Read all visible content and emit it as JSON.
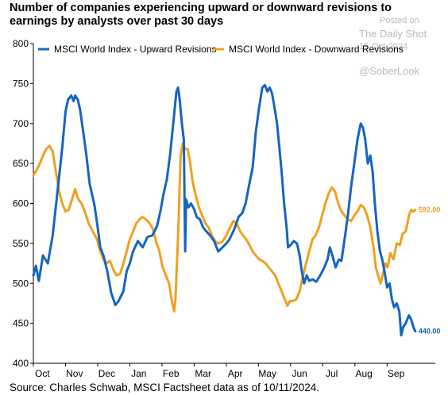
{
  "title": "Number of companies experiencing upward or downward revisions to earnings by analysts over past 30 days",
  "source": "Source: Charles Schwab, MSCI Factsheet data as of 10/11/2024.",
  "watermark": {
    "posted": "Posted on",
    "site": "The Daily Shot",
    "date": "15-Oct-2024",
    "handle": "@SoberLook"
  },
  "chart_data": {
    "type": "line",
    "title": "Number of companies experiencing upward or downward revisions to earnings by analysts over past 30 days",
    "xlabel": "",
    "ylabel": "",
    "ylim": [
      400,
      800
    ],
    "yticks": [
      400,
      450,
      500,
      550,
      600,
      650,
      700,
      750,
      800
    ],
    "xticks": [
      "Oct",
      "Nov",
      "Dec",
      "Jan",
      "Feb",
      "Mar",
      "Apr",
      "May",
      "Jun",
      "Jul",
      "Aug",
      "Sep"
    ],
    "xlim": [
      0,
      12.5
    ],
    "grid": false,
    "legend": "top-center",
    "series": [
      {
        "name": "MSCI World Index - Upward Revisions",
        "color": "#1565c0",
        "end_label": "440.00",
        "points": [
          [
            0.0,
            510
          ],
          [
            0.08,
            522
          ],
          [
            0.17,
            503
          ],
          [
            0.3,
            535
          ],
          [
            0.45,
            525
          ],
          [
            0.6,
            560
          ],
          [
            0.75,
            615
          ],
          [
            0.9,
            670
          ],
          [
            1.0,
            715
          ],
          [
            1.08,
            730
          ],
          [
            1.18,
            735
          ],
          [
            1.25,
            728
          ],
          [
            1.3,
            735
          ],
          [
            1.38,
            730
          ],
          [
            1.45,
            718
          ],
          [
            1.55,
            690
          ],
          [
            1.65,
            660
          ],
          [
            1.75,
            625
          ],
          [
            1.9,
            598
          ],
          [
            2.0,
            570
          ],
          [
            2.08,
            545
          ],
          [
            2.18,
            535
          ],
          [
            2.3,
            515
          ],
          [
            2.42,
            488
          ],
          [
            2.55,
            473
          ],
          [
            2.65,
            478
          ],
          [
            2.8,
            490
          ],
          [
            2.9,
            515
          ],
          [
            3.0,
            525
          ],
          [
            3.1,
            540
          ],
          [
            3.25,
            553
          ],
          [
            3.4,
            545
          ],
          [
            3.55,
            558
          ],
          [
            3.7,
            560
          ],
          [
            3.85,
            572
          ],
          [
            3.95,
            590
          ],
          [
            4.05,
            612
          ],
          [
            4.15,
            630
          ],
          [
            4.25,
            660
          ],
          [
            4.35,
            700
          ],
          [
            4.45,
            740
          ],
          [
            4.5,
            745
          ],
          [
            4.55,
            730
          ],
          [
            4.62,
            700
          ],
          [
            4.68,
            680
          ],
          [
            4.72,
            540
          ],
          [
            4.75,
            605
          ],
          [
            4.82,
            595
          ],
          [
            4.9,
            600
          ],
          [
            5.0,
            593
          ],
          [
            5.08,
            583
          ],
          [
            5.18,
            580
          ],
          [
            5.28,
            570
          ],
          [
            5.38,
            565
          ],
          [
            5.5,
            560
          ],
          [
            5.62,
            553
          ],
          [
            5.75,
            540
          ],
          [
            5.88,
            545
          ],
          [
            6.0,
            550
          ],
          [
            6.1,
            555
          ],
          [
            6.25,
            568
          ],
          [
            6.38,
            583
          ],
          [
            6.5,
            588
          ],
          [
            6.6,
            600
          ],
          [
            6.72,
            625
          ],
          [
            6.82,
            645
          ],
          [
            6.92,
            690
          ],
          [
            7.02,
            720
          ],
          [
            7.12,
            745
          ],
          [
            7.2,
            748
          ],
          [
            7.28,
            740
          ],
          [
            7.35,
            745
          ],
          [
            7.42,
            738
          ],
          [
            7.5,
            720
          ],
          [
            7.58,
            700
          ],
          [
            7.65,
            670
          ],
          [
            7.72,
            640
          ],
          [
            7.8,
            600
          ],
          [
            7.88,
            568
          ],
          [
            7.92,
            545
          ],
          [
            8.0,
            548
          ],
          [
            8.1,
            553
          ],
          [
            8.2,
            550
          ],
          [
            8.28,
            535
          ],
          [
            8.35,
            515
          ],
          [
            8.42,
            500
          ],
          [
            8.5,
            510
          ],
          [
            8.58,
            503
          ],
          [
            8.68,
            505
          ],
          [
            8.8,
            502
          ],
          [
            8.92,
            510
          ],
          [
            9.05,
            520
          ],
          [
            9.15,
            530
          ],
          [
            9.22,
            545
          ],
          [
            9.3,
            535
          ],
          [
            9.4,
            520
          ],
          [
            9.5,
            530
          ],
          [
            9.58,
            528
          ],
          [
            9.68,
            555
          ],
          [
            9.78,
            585
          ],
          [
            9.88,
            620
          ],
          [
            9.98,
            650
          ],
          [
            10.08,
            680
          ],
          [
            10.18,
            700
          ],
          [
            10.25,
            695
          ],
          [
            10.32,
            680
          ],
          [
            10.4,
            650
          ],
          [
            10.48,
            660
          ],
          [
            10.55,
            640
          ],
          [
            10.62,
            600
          ],
          [
            10.7,
            565
          ],
          [
            10.78,
            540
          ],
          [
            10.85,
            530
          ],
          [
            10.92,
            515
          ],
          [
            11.0,
            495
          ],
          [
            11.08,
            500
          ],
          [
            11.15,
            480
          ],
          [
            11.22,
            470
          ],
          [
            11.3,
            475
          ],
          [
            11.38,
            465
          ],
          [
            11.44,
            435
          ],
          [
            11.5,
            445
          ],
          [
            11.58,
            450
          ],
          [
            11.68,
            460
          ],
          [
            11.75,
            455
          ],
          [
            11.82,
            445
          ],
          [
            11.88,
            440
          ]
        ]
      },
      {
        "name": "MSCI World Index - Downward Revisions",
        "color": "#f0a020",
        "end_label": "592.00",
        "points": [
          [
            0.0,
            635
          ],
          [
            0.08,
            640
          ],
          [
            0.18,
            648
          ],
          [
            0.3,
            660
          ],
          [
            0.4,
            668
          ],
          [
            0.5,
            672
          ],
          [
            0.6,
            665
          ],
          [
            0.7,
            640
          ],
          [
            0.8,
            615
          ],
          [
            0.9,
            600
          ],
          [
            1.0,
            590
          ],
          [
            1.1,
            592
          ],
          [
            1.2,
            605
          ],
          [
            1.3,
            618
          ],
          [
            1.4,
            605
          ],
          [
            1.5,
            600
          ],
          [
            1.6,
            590
          ],
          [
            1.72,
            575
          ],
          [
            1.85,
            565
          ],
          [
            1.98,
            555
          ],
          [
            2.08,
            540
          ],
          [
            2.18,
            530
          ],
          [
            2.28,
            525
          ],
          [
            2.38,
            528
          ],
          [
            2.48,
            518
          ],
          [
            2.58,
            510
          ],
          [
            2.7,
            512
          ],
          [
            2.8,
            525
          ],
          [
            2.9,
            540
          ],
          [
            3.0,
            555
          ],
          [
            3.1,
            565
          ],
          [
            3.2,
            575
          ],
          [
            3.3,
            580
          ],
          [
            3.4,
            583
          ],
          [
            3.5,
            580
          ],
          [
            3.62,
            575
          ],
          [
            3.72,
            568
          ],
          [
            3.82,
            552
          ],
          [
            3.92,
            540
          ],
          [
            4.02,
            520
          ],
          [
            4.12,
            510
          ],
          [
            4.22,
            500
          ],
          [
            4.32,
            475
          ],
          [
            4.38,
            465
          ],
          [
            4.42,
            480
          ],
          [
            4.5,
            560
          ],
          [
            4.58,
            660
          ],
          [
            4.65,
            675
          ],
          [
            4.72,
            668
          ],
          [
            4.8,
            668
          ],
          [
            4.88,
            650
          ],
          [
            4.95,
            628
          ],
          [
            5.05,
            610
          ],
          [
            5.15,
            595
          ],
          [
            5.25,
            585
          ],
          [
            5.35,
            575
          ],
          [
            5.45,
            570
          ],
          [
            5.55,
            560
          ],
          [
            5.65,
            553
          ],
          [
            5.75,
            550
          ],
          [
            5.88,
            552
          ],
          [
            6.0,
            560
          ],
          [
            6.12,
            570
          ],
          [
            6.22,
            578
          ],
          [
            6.32,
            575
          ],
          [
            6.42,
            566
          ],
          [
            6.52,
            560
          ],
          [
            6.62,
            555
          ],
          [
            6.72,
            548
          ],
          [
            6.82,
            540
          ],
          [
            6.92,
            535
          ],
          [
            7.02,
            530
          ],
          [
            7.12,
            528
          ],
          [
            7.22,
            525
          ],
          [
            7.32,
            520
          ],
          [
            7.42,
            515
          ],
          [
            7.52,
            510
          ],
          [
            7.62,
            500
          ],
          [
            7.72,
            490
          ],
          [
            7.82,
            480
          ],
          [
            7.9,
            472
          ],
          [
            7.98,
            478
          ],
          [
            8.08,
            478
          ],
          [
            8.18,
            480
          ],
          [
            8.28,
            490
          ],
          [
            8.38,
            508
          ],
          [
            8.48,
            525
          ],
          [
            8.58,
            540
          ],
          [
            8.68,
            555
          ],
          [
            8.78,
            560
          ],
          [
            8.88,
            570
          ],
          [
            8.98,
            585
          ],
          [
            9.08,
            600
          ],
          [
            9.18,
            612
          ],
          [
            9.28,
            620
          ],
          [
            9.38,
            615
          ],
          [
            9.48,
            600
          ],
          [
            9.58,
            590
          ],
          [
            9.68,
            585
          ],
          [
            9.78,
            580
          ],
          [
            9.88,
            578
          ],
          [
            9.98,
            585
          ],
          [
            10.08,
            590
          ],
          [
            10.18,
            598
          ],
          [
            10.28,
            595
          ],
          [
            10.38,
            585
          ],
          [
            10.48,
            570
          ],
          [
            10.58,
            545
          ],
          [
            10.65,
            520
          ],
          [
            10.72,
            510
          ],
          [
            10.8,
            500
          ],
          [
            10.88,
            513
          ],
          [
            10.95,
            525
          ],
          [
            11.02,
            520
          ],
          [
            11.1,
            538
          ],
          [
            11.2,
            530
          ],
          [
            11.3,
            550
          ],
          [
            11.4,
            548
          ],
          [
            11.48,
            562
          ],
          [
            11.58,
            565
          ],
          [
            11.68,
            585
          ],
          [
            11.75,
            592
          ],
          [
            11.82,
            590
          ],
          [
            11.88,
            592
          ]
        ]
      }
    ]
  }
}
